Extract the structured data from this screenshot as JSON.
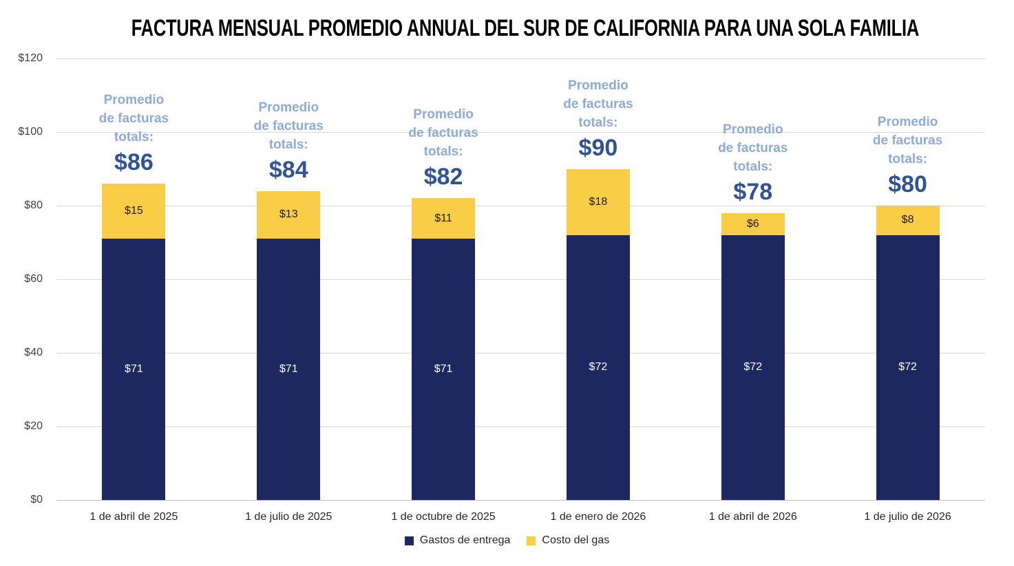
{
  "chart_data": {
    "type": "bar",
    "stacked": true,
    "title": "FACTURA MENSUAL PROMEDIO ANNUAL DEL SUR DE CALIFORNIA PARA UNA SOLA FAMILIA",
    "categories": [
      "1 de abril de 2025",
      "1 de julio de 2025",
      "1 de octubre de 2025",
      "1 de enero de 2026",
      "1 de abril de 2026",
      "1 de julio de 2026"
    ],
    "series": [
      {
        "name": "Gastos de entrega",
        "color": "#1D2760",
        "label_color": "#FFFFFF",
        "values": [
          71,
          71,
          71,
          72,
          72,
          72
        ],
        "value_labels": [
          "$71",
          "$71",
          "$71",
          "$72",
          "$72",
          "$72"
        ]
      },
      {
        "name": "Costo del gas",
        "color": "#FACD46",
        "label_color": "#1A1A1A",
        "values": [
          15,
          13,
          11,
          18,
          6,
          8
        ],
        "value_labels": [
          "$15",
          "$13",
          "$11",
          "$18",
          "$6",
          "$8"
        ]
      }
    ],
    "totals": [
      86,
      84,
      82,
      90,
      78,
      80
    ],
    "total_labels": [
      "$86",
      "$84",
      "$82",
      "$90",
      "$78",
      "$80"
    ],
    "annotation_lines": [
      "Promedio",
      "de facturas",
      "totals:"
    ],
    "y_ticks": [
      0,
      20,
      40,
      60,
      80,
      100,
      120
    ],
    "y_tick_labels": [
      "$0",
      "$20",
      "$40",
      "$60",
      "$80",
      "$100",
      "$120"
    ],
    "ylim": [
      0,
      120
    ],
    "grid": true,
    "legend_position": "bottom",
    "colors": {
      "delivery": "#1D2760",
      "gas": "#FACD46",
      "annotation_text": "#8EAADB",
      "annotation_total": "#2F5496",
      "gridline": "#D9D9D9",
      "axis_line": "#BFBFBF",
      "axis_text": "#404040",
      "title_text": "#000000"
    }
  }
}
